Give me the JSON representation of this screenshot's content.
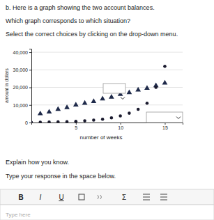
{
  "question": {
    "part": "b. Here is a graph showing the two account balances.",
    "prompt": "Which graph corresponds to which situation?",
    "instruction": "Select the correct choices by clicking on the drop-down menu."
  },
  "chart_data": {
    "type": "scatter",
    "x_label": "number of weeks",
    "y_label": "amount in dollars",
    "xlim": [
      0,
      17
    ],
    "xticks": [
      5,
      10,
      15
    ],
    "ylim": [
      0,
      42000
    ],
    "yticks": [
      0,
      {
        "value": 10000,
        "label": "10,000"
      },
      {
        "value": 20000,
        "label": "20,000"
      },
      {
        "value": 30000,
        "label": "30,000"
      },
      {
        "value": 40000,
        "label": "40,000"
      }
    ],
    "grid": true,
    "series": [
      {
        "color": "#1f2a4a",
        "marker": "triangle",
        "x": [
          1,
          2,
          3,
          4,
          5,
          6,
          7,
          8,
          9,
          10,
          11,
          12,
          13,
          14,
          15
        ],
        "values": [
          5000,
          6000,
          7500,
          8500,
          10000,
          11000,
          12000,
          13500,
          14500,
          16000,
          17000,
          18500,
          19500,
          21000,
          22500
        ]
      },
      {
        "color": "#1a1a2e",
        "marker": "circle",
        "x": [
          0,
          1,
          2,
          3,
          4,
          5,
          6,
          7,
          8,
          9,
          10,
          11,
          12,
          13,
          14,
          15
        ],
        "values": [
          100,
          150,
          250,
          350,
          500,
          700,
          1000,
          1400,
          1900,
          2700,
          3800,
          5300,
          7500,
          11000,
          20000,
          32000
        ]
      }
    ]
  },
  "response": {
    "prompt": "Explain how you know.",
    "instruction": "Type your response in the space below.",
    "toolbar": [
      "B",
      "I",
      "U",
      "Σ"
    ],
    "placeholder": "Type here"
  }
}
